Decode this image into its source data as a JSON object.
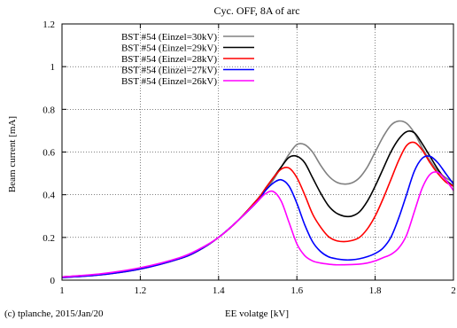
{
  "chart_data": {
    "type": "line",
    "title": "Cyc. OFF, 8A of arc",
    "xlabel": "EE volatge [kV]",
    "ylabel": "Beam current [mA]",
    "xlim": [
      1,
      2
    ],
    "ylim": [
      0,
      1.2
    ],
    "x_ticks": [
      "1",
      "1.2",
      "1.4",
      "1.6",
      "1.8",
      "2"
    ],
    "y_ticks": [
      "0",
      "0.2",
      "0.4",
      "0.6",
      "0.8",
      "1",
      "1.2"
    ],
    "grid": true,
    "legend_position": "top-left",
    "x": [
      1.0,
      1.1,
      1.2,
      1.3,
      1.35,
      1.4,
      1.45,
      1.5,
      1.52,
      1.54,
      1.56,
      1.58,
      1.6,
      1.62,
      1.64,
      1.66,
      1.68,
      1.7,
      1.72,
      1.74,
      1.76,
      1.78,
      1.8,
      1.82,
      1.84,
      1.86,
      1.88,
      1.9,
      1.92,
      1.94,
      1.96,
      1.98,
      2.0
    ],
    "series": [
      {
        "name": "BST #54 (Einzel=30kV)",
        "color": "#808080",
        "values": [
          0.015,
          0.028,
          0.055,
          0.1,
          0.14,
          0.2,
          0.28,
          0.38,
          0.42,
          0.47,
          0.53,
          0.59,
          0.635,
          0.635,
          0.6,
          0.54,
          0.49,
          0.46,
          0.45,
          0.455,
          0.48,
          0.53,
          0.6,
          0.67,
          0.725,
          0.745,
          0.735,
          0.69,
          0.62,
          0.56,
          0.51,
          0.48,
          0.46
        ]
      },
      {
        "name": "BST #54 (Einzel=29kV)",
        "color": "#000000",
        "values": [
          0.015,
          0.028,
          0.055,
          0.1,
          0.14,
          0.2,
          0.28,
          0.38,
          0.43,
          0.48,
          0.53,
          0.575,
          0.58,
          0.55,
          0.48,
          0.41,
          0.35,
          0.315,
          0.3,
          0.3,
          0.32,
          0.37,
          0.44,
          0.52,
          0.6,
          0.66,
          0.695,
          0.69,
          0.64,
          0.58,
          0.52,
          0.47,
          0.44
        ]
      },
      {
        "name": "BST #54 (Einzel=28kV)",
        "color": "#ff0000",
        "values": [
          0.012,
          0.025,
          0.052,
          0.1,
          0.14,
          0.2,
          0.28,
          0.38,
          0.43,
          0.48,
          0.52,
          0.525,
          0.48,
          0.4,
          0.31,
          0.25,
          0.205,
          0.185,
          0.18,
          0.185,
          0.2,
          0.24,
          0.3,
          0.38,
          0.47,
          0.56,
          0.63,
          0.645,
          0.61,
          0.55,
          0.5,
          0.46,
          0.44
        ]
      },
      {
        "name": "BST #54 (Einzel=27kV)",
        "color": "#0000ff",
        "values": [
          0.012,
          0.025,
          0.052,
          0.1,
          0.14,
          0.2,
          0.28,
          0.37,
          0.42,
          0.455,
          0.47,
          0.44,
          0.36,
          0.26,
          0.18,
          0.135,
          0.11,
          0.1,
          0.095,
          0.095,
          0.1,
          0.11,
          0.125,
          0.15,
          0.2,
          0.29,
          0.4,
          0.51,
          0.57,
          0.58,
          0.55,
          0.5,
          0.45
        ]
      },
      {
        "name": "BST #54 (Einzel=26kV)",
        "color": "#ff00ff",
        "values": [
          0.015,
          0.03,
          0.058,
          0.105,
          0.145,
          0.2,
          0.28,
          0.37,
          0.405,
          0.415,
          0.37,
          0.27,
          0.17,
          0.115,
          0.09,
          0.08,
          0.075,
          0.072,
          0.072,
          0.073,
          0.075,
          0.08,
          0.09,
          0.105,
          0.12,
          0.15,
          0.21,
          0.32,
          0.43,
          0.495,
          0.505,
          0.47,
          0.42
        ]
      }
    ]
  },
  "footer": {
    "copyright": "(c) tplanche, 2015/Jan/20"
  }
}
